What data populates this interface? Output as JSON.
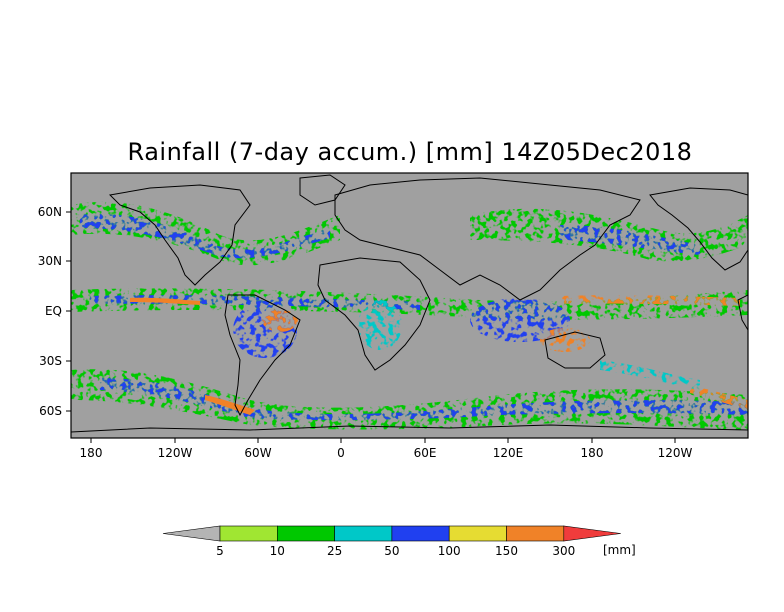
{
  "title": "Rainfall (7-day accum.) [mm] 14Z05Dec2018",
  "map": {
    "lat_ticks": [
      "60N",
      "30N",
      "EQ",
      "30S",
      "60S"
    ],
    "lon_ticks": [
      "180",
      "120W",
      "60W",
      "0",
      "60E",
      "120E",
      "180",
      "120W"
    ]
  },
  "legend": {
    "labels": [
      "5",
      "10",
      "25",
      "50",
      "100",
      "150",
      "300"
    ],
    "unit": "[mm]",
    "colors": [
      "#b4b4b4",
      "#a0e632",
      "#00c800",
      "#00c8c8",
      "#2040f0",
      "#e6dc32",
      "#f08228",
      "#f03c3c"
    ]
  },
  "colors": {
    "background": "#a0a0a0",
    "land_outline": "#000000"
  }
}
